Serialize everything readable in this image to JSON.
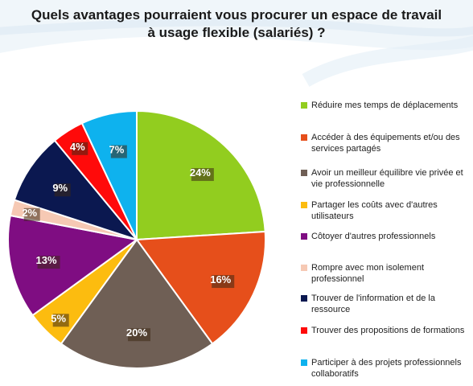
{
  "title": {
    "line1": "Quels avantages pourraient vous procurer un espace de travail",
    "line2": "à usage flexible (salariés) ?"
  },
  "chart_data": {
    "type": "pie",
    "title": "Quels avantages pourraient vous procurer un espace de travail à usage flexible (salariés) ?",
    "start_angle_deg": 0,
    "direction": "clockwise",
    "legend_position": "right",
    "slices": [
      {
        "label": "Réduire mes temps de déplacements",
        "value": 24,
        "display": "24%",
        "color": "#92cd1f",
        "label_color": "#ffffff"
      },
      {
        "label": "Accéder à des équipements et/ou des services partagés",
        "value": 16,
        "display": "16%",
        "color": "#e64f1b",
        "label_color": "#ffffff"
      },
      {
        "label": "Avoir un meilleur équilibre vie privée et vie professionnelle",
        "value": 20,
        "display": "20%",
        "color": "#6f5f55",
        "label_color": "#ffffff"
      },
      {
        "label": "Partager les coûts avec d'autres utilisateurs",
        "value": 5,
        "display": "5%",
        "color": "#fcbc0f",
        "label_color": "#ffffff"
      },
      {
        "label": "Côtoyer d'autres professionnels",
        "value": 13,
        "display": "13%",
        "color": "#7f0d82",
        "label_color": "#ffffff"
      },
      {
        "label": "Rompre avec mon isolement professionnel",
        "value": 2,
        "display": "2%",
        "color": "#f6c9b4",
        "label_color": "#ffffff"
      },
      {
        "label": "Trouver de l'information et de la ressource",
        "value": 9,
        "display": "9%",
        "color": "#0b1850",
        "label_color": "#ffffff"
      },
      {
        "label": "Trouver des propositions de formations",
        "value": 4,
        "display": "4%",
        "color": "#ff0a0a",
        "label_color": "#ffffff"
      },
      {
        "label": "Participer à des projets professionnels collaboratifs",
        "value": 7,
        "display": "7%",
        "color": "#0eb2ee",
        "label_color": "#ffffff"
      }
    ]
  }
}
